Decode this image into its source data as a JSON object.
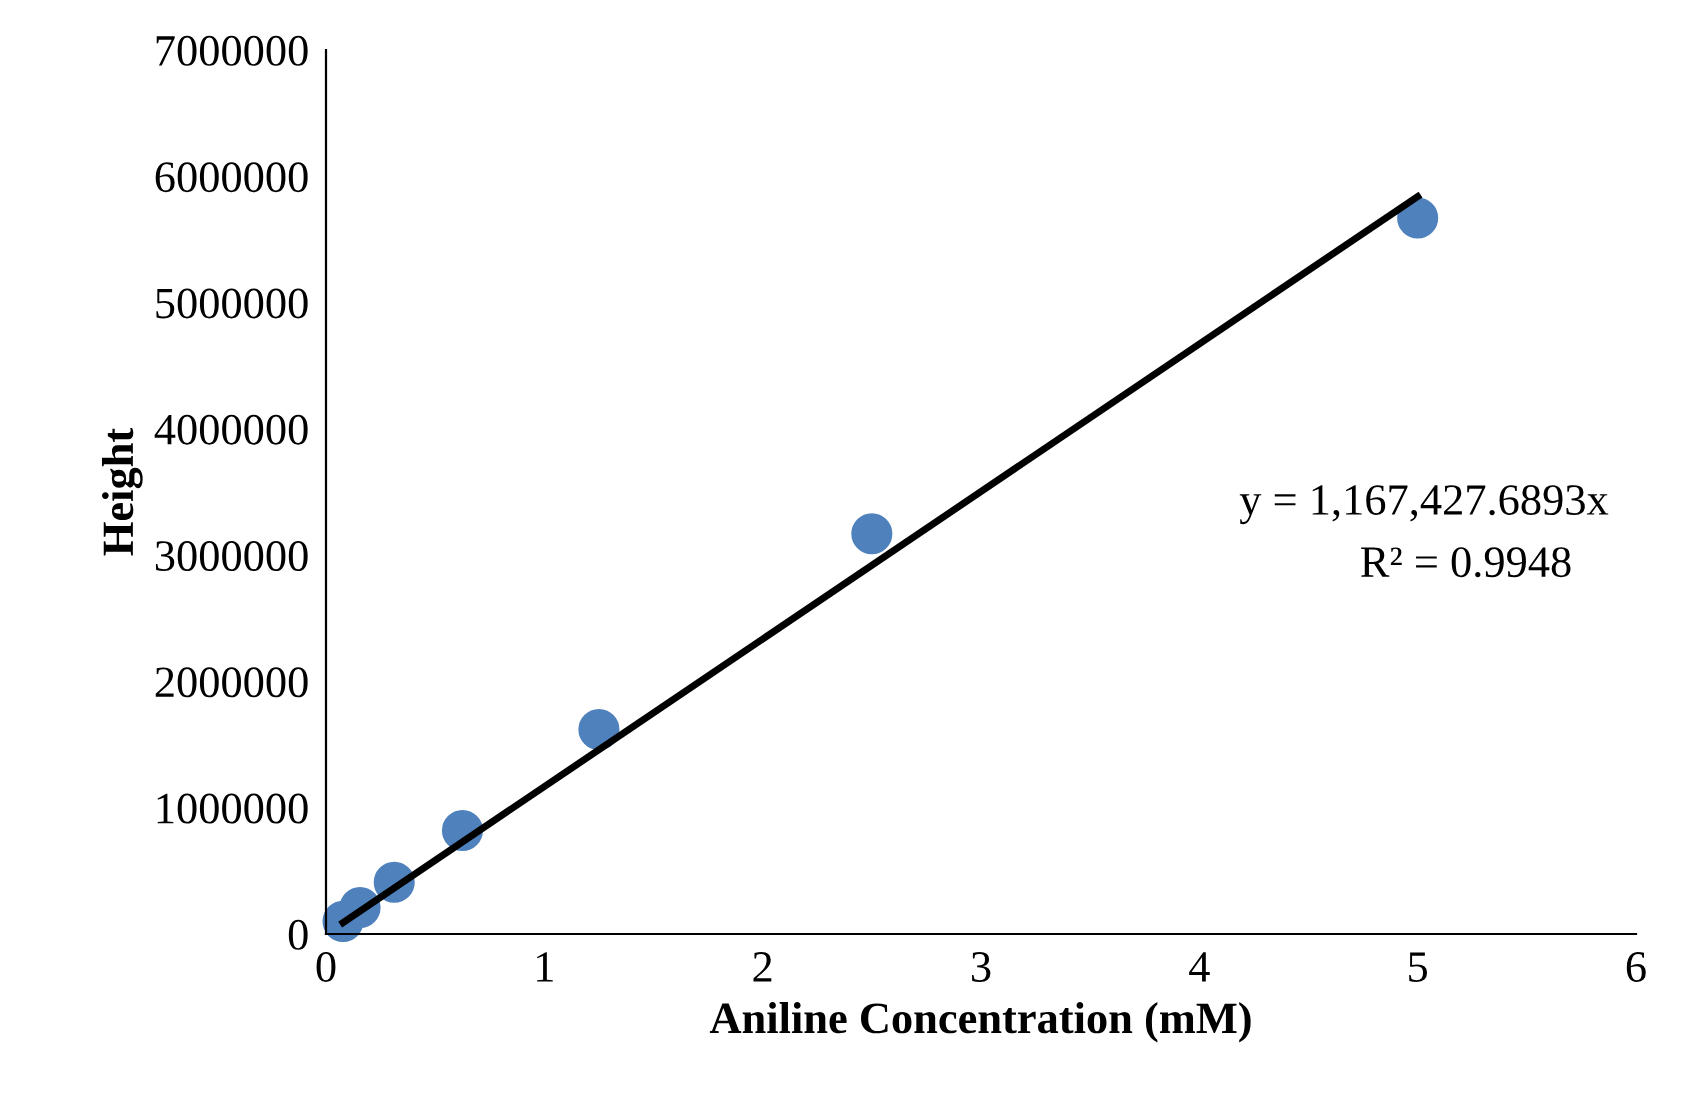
{
  "chart_data": {
    "type": "scatter",
    "xlabel": "Aniline Concentration (mM)",
    "ylabel": "Height",
    "series": [
      {
        "color": "#4f81bd",
        "marker": "circle",
        "x": [
          0.078,
          0.156,
          0.3125,
          0.625,
          1.25,
          2.5,
          5
        ],
        "values": [
          100000,
          210000,
          410000,
          820000,
          1620000,
          3170000,
          5670000
        ]
      },
      {
        "type": "line",
        "color": "#000000",
        "marker": "none",
        "x": [
          0.078,
          5
        ],
        "values": [
          90000,
          5840000
        ]
      }
    ],
    "annotations": [
      "y = 1,167,427.6893x",
      "R² = 0.9948"
    ],
    "xlim": [
      0,
      6
    ],
    "xticks": [
      0,
      1,
      2,
      3,
      4,
      5,
      6
    ],
    "ylim": [
      0,
      7000000
    ],
    "yticks": [
      0,
      1000000,
      2000000,
      3000000,
      4000000,
      5000000,
      6000000,
      7000000
    ],
    "grid": false,
    "legend": false
  }
}
